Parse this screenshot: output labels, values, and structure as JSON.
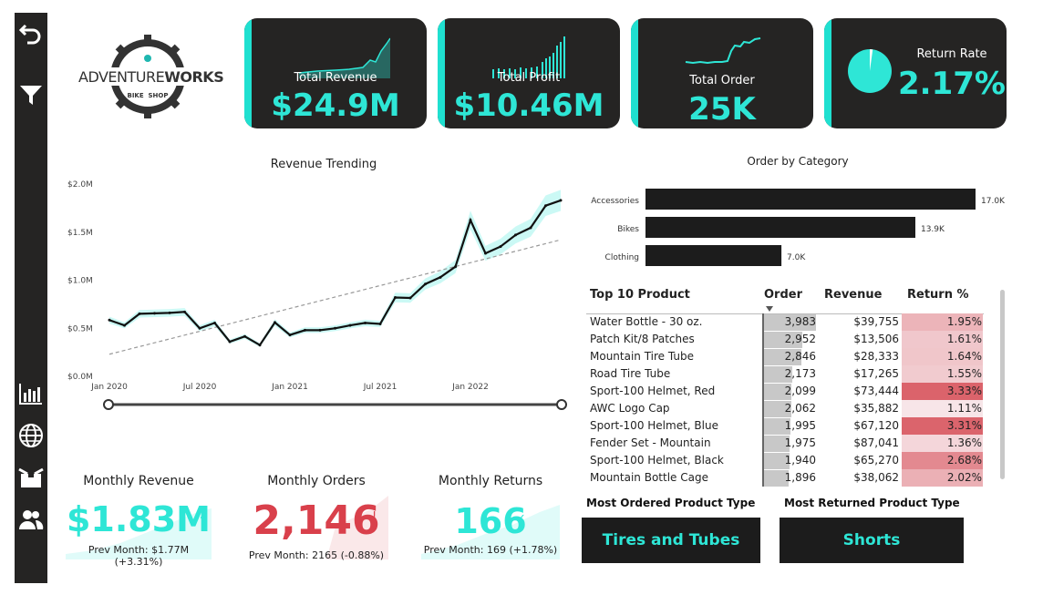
{
  "brand": {
    "name_a": "ADVENTURE",
    "name_b": "WORKS",
    "tag_a": "BIKE",
    "tag_b": "SHOP"
  },
  "kpis": {
    "revenue": {
      "label": "Total Revenue",
      "value": "$24.9M"
    },
    "profit": {
      "label": "Total Profit",
      "value": "$10.46M"
    },
    "orders": {
      "label": "Total Order",
      "value": "25K"
    },
    "return_rate": {
      "label": "Return Rate",
      "value": "2.17%",
      "fraction": 0.0217
    }
  },
  "colors": {
    "accent": "#2ee6d6",
    "card": "#252423",
    "red": "#d9404b"
  },
  "chart_data": [
    {
      "type": "line",
      "title": "Revenue Trending",
      "x_ticks": [
        "Jan 2020",
        "Jul 2020",
        "Jan 2021",
        "Jul 2021",
        "Jan 2022"
      ],
      "y_ticks": [
        "$2.0M",
        "$1.5M",
        "$1.0M",
        "$0.5M",
        "$0.0M"
      ],
      "ylim": [
        0,
        2000000
      ],
      "series": [
        {
          "name": "Revenue",
          "values": [
            585000,
            530000,
            650000,
            655000,
            660000,
            670000,
            500000,
            555000,
            360000,
            415000,
            325000,
            560000,
            430000,
            480000,
            480000,
            500000,
            530000,
            555000,
            545000,
            820000,
            815000,
            960000,
            1030000,
            1140000,
            1625000,
            1280000,
            1350000,
            1470000,
            1545000,
            1775000,
            1830000
          ]
        }
      ],
      "trend": {
        "start": 230000,
        "end": 1420000
      }
    },
    {
      "type": "bar",
      "title": "Order by Category",
      "categories": [
        "Accessories",
        "Bikes",
        "Clothing"
      ],
      "values": [
        17000,
        13900,
        7000
      ],
      "labels": [
        "17.0K",
        "13.9K",
        "7.0K"
      ]
    }
  ],
  "table": {
    "title": "Top 10 Product",
    "headers": {
      "order": "Order",
      "revenue": "Revenue",
      "return": "Return %"
    },
    "rows": [
      {
        "product": "Water Bottle - 30 oz.",
        "order": "3,983",
        "order_num": 3983,
        "revenue": "$39,755",
        "ret": "1.95%",
        "ret_num": 1.95
      },
      {
        "product": "Patch Kit/8 Patches",
        "order": "2,952",
        "order_num": 2952,
        "revenue": "$13,506",
        "ret": "1.61%",
        "ret_num": 1.61
      },
      {
        "product": "Mountain Tire Tube",
        "order": "2,846",
        "order_num": 2846,
        "revenue": "$28,333",
        "ret": "1.64%",
        "ret_num": 1.64
      },
      {
        "product": "Road Tire Tube",
        "order": "2,173",
        "order_num": 2173,
        "revenue": "$17,265",
        "ret": "1.55%",
        "ret_num": 1.55
      },
      {
        "product": "Sport-100 Helmet, Red",
        "order": "2,099",
        "order_num": 2099,
        "revenue": "$73,444",
        "ret": "3.33%",
        "ret_num": 3.33
      },
      {
        "product": "AWC Logo Cap",
        "order": "2,062",
        "order_num": 2062,
        "revenue": "$35,882",
        "ret": "1.11%",
        "ret_num": 1.11
      },
      {
        "product": "Sport-100 Helmet, Blue",
        "order": "1,995",
        "order_num": 1995,
        "revenue": "$67,120",
        "ret": "3.31%",
        "ret_num": 3.31
      },
      {
        "product": "Fender Set - Mountain",
        "order": "1,975",
        "order_num": 1975,
        "revenue": "$87,041",
        "ret": "1.36%",
        "ret_num": 1.36
      },
      {
        "product": "Sport-100 Helmet, Black",
        "order": "1,940",
        "order_num": 1940,
        "revenue": "$65,270",
        "ret": "2.68%",
        "ret_num": 2.68
      },
      {
        "product": "Mountain Bottle Cage",
        "order": "1,896",
        "order_num": 1896,
        "revenue": "$38,062",
        "ret": "2.02%",
        "ret_num": 2.02
      }
    ]
  },
  "monthly": {
    "revenue": {
      "title": "Monthly Revenue",
      "value": "$1.83M",
      "prev": "Prev Month: $1.77M (+3.31%)",
      "mark": "✓"
    },
    "orders": {
      "title": "Monthly Orders",
      "value": "2,146",
      "prev": "Prev Month: 2165 (-0.88%)",
      "mark": "!"
    },
    "returns": {
      "title": "Monthly Returns",
      "value": "166",
      "prev": "Prev Month: 169 (+1.78%)",
      "mark": "✓"
    }
  },
  "most_ordered": {
    "label": "Most Ordered Product Type",
    "value": "Tires and Tubes"
  },
  "most_returned": {
    "label": "Most Returned Product Type",
    "value": "Shorts"
  }
}
